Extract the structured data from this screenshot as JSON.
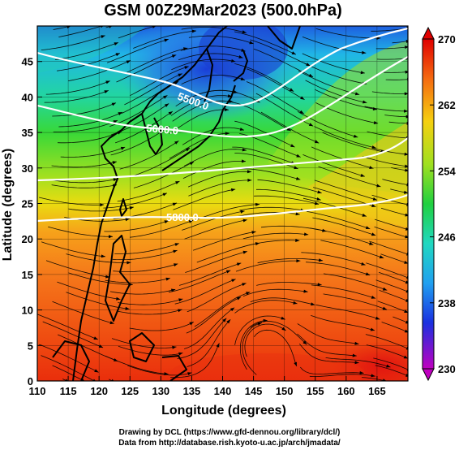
{
  "title": "GSM 00Z29Mar2023 (500.0hPa)",
  "xlabel": "Longitude (degrees)",
  "ylabel": "Latitude (degrees)",
  "x_ticks": [
    "110",
    "115",
    "120",
    "125",
    "130",
    "135",
    "140",
    "145",
    "150",
    "155",
    "160",
    "165"
  ],
  "y_ticks": [
    "0",
    "5",
    "10",
    "15",
    "20",
    "25",
    "30",
    "35",
    "40",
    "45"
  ],
  "colorbar": {
    "ticks": [
      "270",
      "262",
      "254",
      "246",
      "238",
      "230"
    ]
  },
  "contours": [
    {
      "label": "5500.0"
    },
    {
      "label": "5600.0"
    },
    {
      "label": "5800.0"
    }
  ],
  "credits": {
    "line1": "Drawing by DCL (https://www.gfd-dennou.org/library/dcl/)",
    "line2": "Data from http://database.rish.kyoto-u.ac.jp/arch/jmadata/"
  },
  "chart_data": {
    "type": "heatmap",
    "title": "GSM 00Z29Mar2023 (500.0hPa)",
    "xlabel": "Longitude (degrees)",
    "ylabel": "Latitude (degrees)",
    "xlim": [
      110,
      170
    ],
    "ylim": [
      0,
      50
    ],
    "colorbar_range": [
      230,
      270
    ],
    "colorbar_ticks": [
      230,
      238,
      246,
      254,
      262,
      270
    ],
    "overlays": [
      "temperature shading",
      "streamlines",
      "geopotential height contours",
      "coastlines"
    ]
  },
  "colors": {
    "cold": "#a000c0",
    "warm": "#e00000"
  }
}
